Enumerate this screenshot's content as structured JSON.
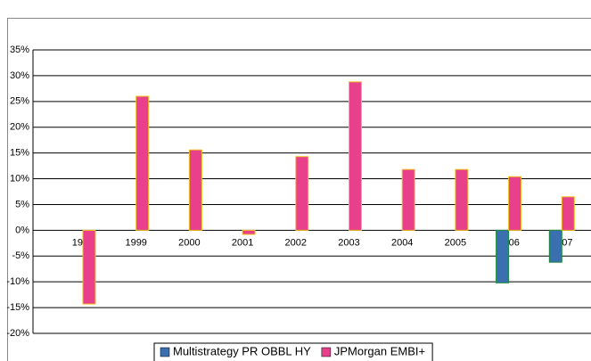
{
  "chart_data": {
    "type": "bar",
    "categories": [
      "1998",
      "1999",
      "2000",
      "2001",
      "2002",
      "2003",
      "2004",
      "2005",
      "2006",
      "2007"
    ],
    "series": [
      {
        "name": "Multistrategy PR OBBL HY",
        "color": "#3a6fb0",
        "values": [
          null,
          null,
          null,
          null,
          null,
          null,
          null,
          null,
          -10.2,
          -6.2
        ]
      },
      {
        "name": "JPMorgan EMBI+",
        "color": "#e8408a",
        "values": [
          -14.3,
          26,
          15.6,
          -0.8,
          14.3,
          28.8,
          11.8,
          11.8,
          10.4,
          6.5
        ]
      }
    ],
    "ylim": [
      -20,
      35
    ],
    "yticks": [
      {
        "value": -20,
        "label": "-20%"
      },
      {
        "value": -15,
        "label": "-15%"
      },
      {
        "value": -10,
        "label": "-10%"
      },
      {
        "value": -5,
        "label": "-5%"
      },
      {
        "value": 0,
        "label": "0%"
      },
      {
        "value": 5,
        "label": "5%"
      },
      {
        "value": 10,
        "label": "10%"
      },
      {
        "value": 15,
        "label": "15%"
      },
      {
        "value": 20,
        "label": "20%"
      },
      {
        "value": 25,
        "label": "25%"
      },
      {
        "value": 30,
        "label": "30%"
      },
      {
        "value": 35,
        "label": "35%"
      }
    ],
    "grid": true
  }
}
